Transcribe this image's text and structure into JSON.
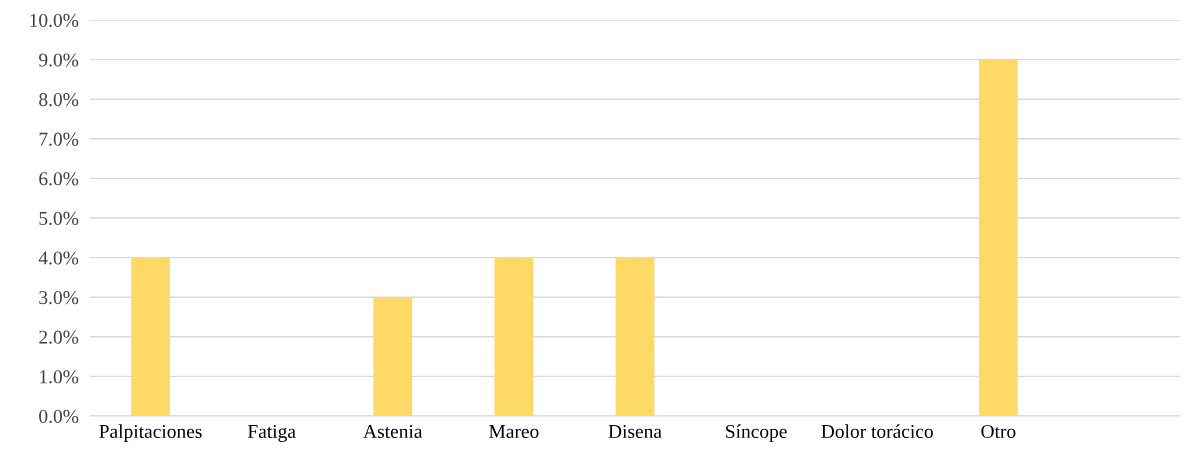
{
  "chart_data": {
    "type": "bar",
    "categories": [
      "Palpitaciones",
      "Fatiga",
      "Astenia",
      "Mareo",
      "Disena",
      "Síncope",
      "Dolor torácico",
      "Otro",
      null
    ],
    "values": [
      4,
      0,
      3,
      4,
      4,
      0,
      0,
      9,
      null
    ],
    "color": "#ffd966",
    "ylim": [
      0,
      10
    ],
    "yticks": [
      {
        "value": 0,
        "label": "0.0%"
      },
      {
        "value": 1,
        "label": "1.0%"
      },
      {
        "value": 2,
        "label": "2.0%"
      },
      {
        "value": 3,
        "label": "3.0%"
      },
      {
        "value": 4,
        "label": "4.0%"
      },
      {
        "value": 5,
        "label": "5.0%"
      },
      {
        "value": 6,
        "label": "6.0%"
      },
      {
        "value": 7,
        "label": "7.0%"
      },
      {
        "value": 8,
        "label": "8.0%"
      },
      {
        "value": 9,
        "label": "9.0%"
      },
      {
        "value": 10,
        "label": "10.0%"
      }
    ],
    "grid": "y"
  }
}
